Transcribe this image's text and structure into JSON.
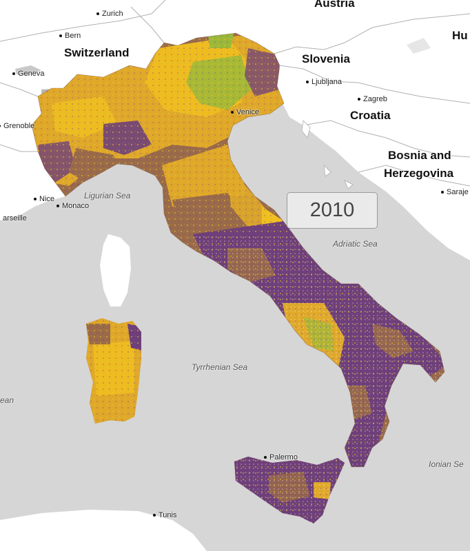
{
  "year": "2010",
  "colors": {
    "sea": "#d6d6d6",
    "land": "#ffffff",
    "borders": "#b0b0b0",
    "purple": "#6e3f7a",
    "brown": "#9a6a4a",
    "gold": "#e0a82a",
    "yellow": "#f0c020",
    "green": "#9ab83a"
  },
  "countries": {
    "austria": "Austria",
    "switzerland": "Switzerland",
    "slovenia": "Slovenia",
    "croatia": "Croatia",
    "bosnia_line1": "Bosnia and",
    "bosnia_line2": "Herzegovina",
    "hungary_partial": "Hu"
  },
  "cities": {
    "zurich": "Zurich",
    "bern": "Bern",
    "geneva": "Geneva",
    "grenoble": "Grenoble",
    "venice": "Venice",
    "ljubljana": "Ljubljana",
    "zagreb": "Zagreb",
    "sarajevo_partial": "Saraje",
    "nice": "Nice",
    "monaco": "Monaco",
    "marseille_partial": "arseille",
    "palermo": "Palermo",
    "tunis": "Tunis"
  },
  "seas": {
    "ligurian": "Ligurian Sea",
    "adriatic": "Adriatic Sea",
    "tyrrhenian": "Tyrrhenian Sea",
    "ionian_partial": "Ionian Se",
    "balearic_partial": "ean"
  }
}
